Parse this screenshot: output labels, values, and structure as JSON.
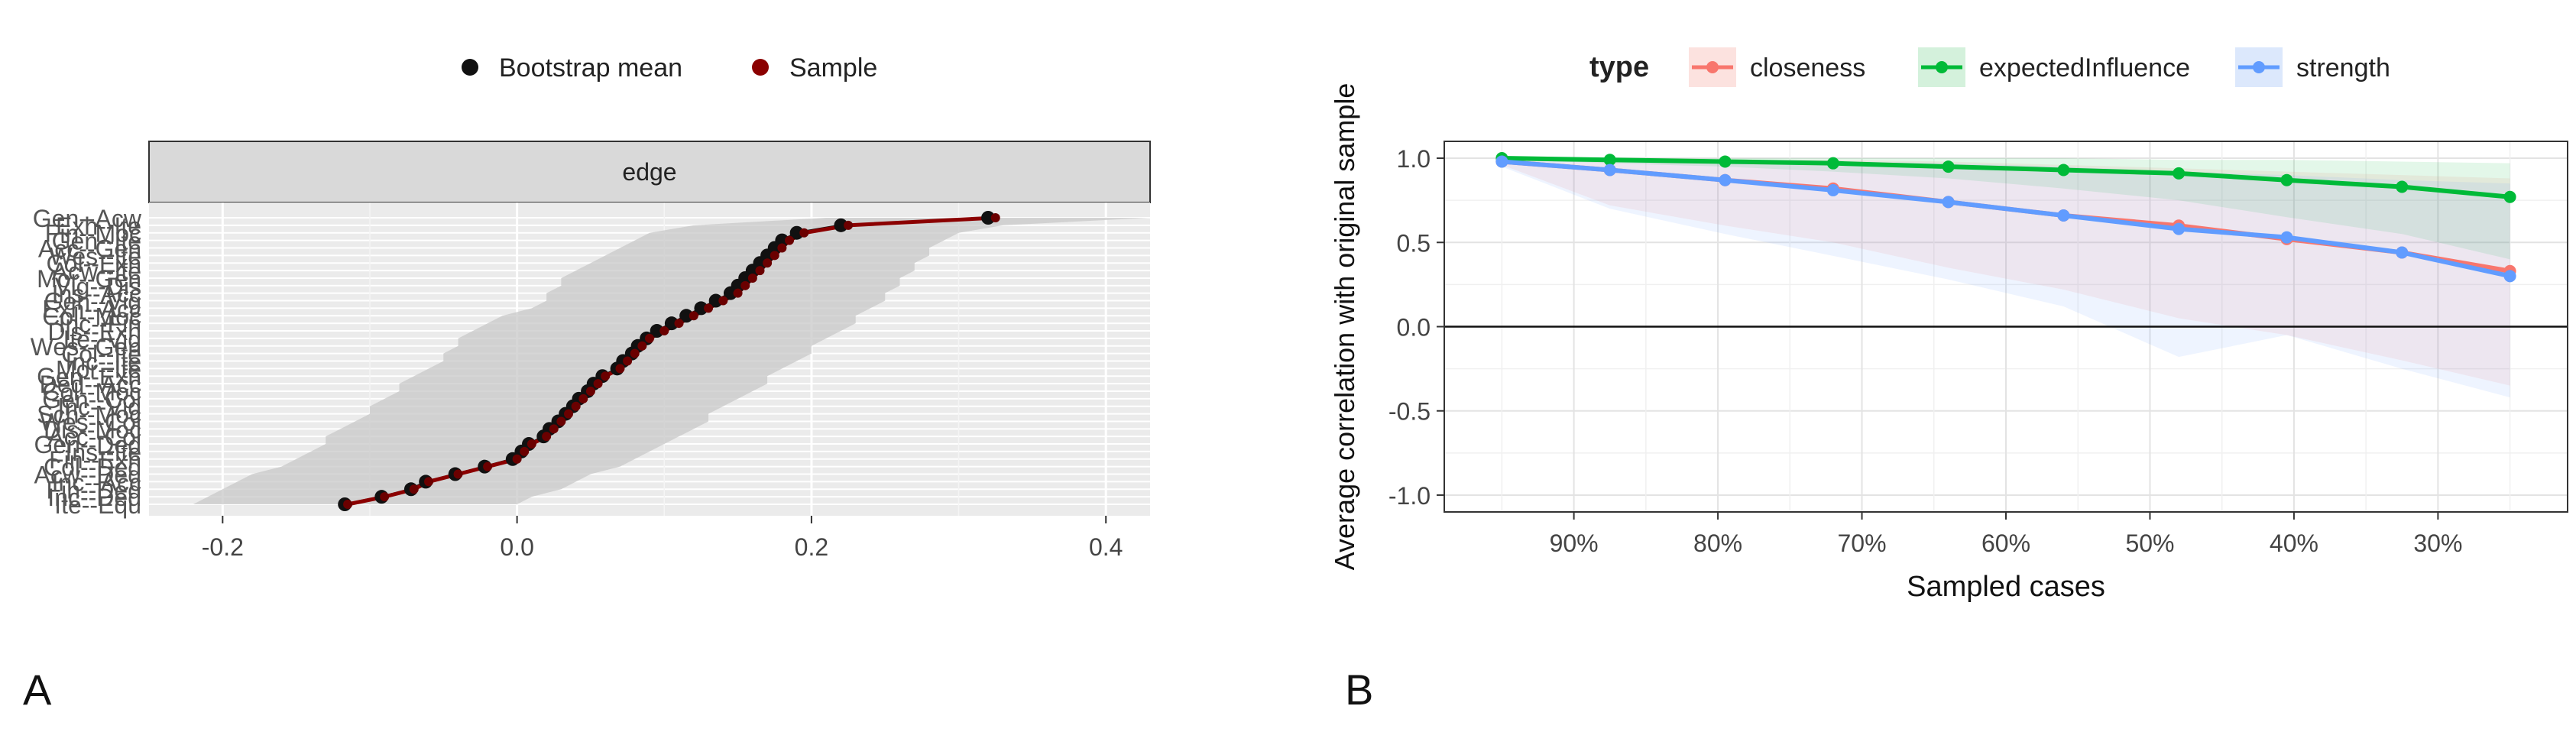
{
  "chart_data": [
    {
      "panel": "A",
      "type": "line",
      "strip_label": "edge",
      "legend": {
        "position": "top",
        "items": [
          {
            "label": "Bootstrap mean",
            "color": "#111111"
          },
          {
            "label": "Sample",
            "color": "#8B0000"
          }
        ]
      },
      "xlim": [
        -0.25,
        0.43
      ],
      "x_ticks": [
        "-0.2",
        "0.0",
        "0.2",
        "0.4"
      ],
      "x_tick_values": [
        -0.2,
        0.0,
        0.2,
        0.4
      ],
      "y_tick_labels": [
        "Gen--Acw",
        "Exh--Ite",
        "Fin--Moc",
        "Gen--Ite",
        "Acc--Gen",
        "Wes--Ite",
        "Col--Exh",
        "Acw--Ite",
        "Mor--Gen",
        "Vig--Dis",
        "Ins--Acc",
        "Gen--Vig",
        "Exh--Acc",
        "Col--Moc",
        "Inc--Fin",
        "Dis--Exh",
        "Ite--Vig",
        "Wes--Gen",
        "Col--Ite",
        "Inc--Ite",
        "Mor--Ite",
        "Gen--Exh",
        "Ded--Acc",
        "Col--Moc",
        "Gen--Col",
        "Inc--Vig",
        "Sch--Moc",
        "Wes--Col",
        "Dis--Moc",
        "Acc--Col",
        "Gen--Ded",
        "Ins--Ite",
        "Fin--Exh",
        "Col--Ded",
        "Acw--Ded",
        "Inc--Acc",
        "Fin--Ded",
        "Inc--Ded",
        "Ite--Equ"
      ],
      "sample": [
        0.325,
        0.225,
        0.195,
        0.185,
        0.18,
        0.175,
        0.17,
        0.165,
        0.16,
        0.155,
        0.15,
        0.14,
        0.13,
        0.12,
        0.11,
        0.1,
        0.09,
        0.085,
        0.08,
        0.075,
        0.07,
        0.06,
        0.055,
        0.05,
        0.045,
        0.04,
        0.035,
        0.03,
        0.025,
        0.02,
        0.01,
        0.005,
        0.0,
        -0.02,
        -0.04,
        -0.06,
        -0.07,
        -0.09,
        -0.115
      ],
      "bootstrap_mean": [
        0.32,
        0.22,
        0.19,
        0.18,
        0.175,
        0.17,
        0.165,
        0.16,
        0.155,
        0.15,
        0.145,
        0.135,
        0.125,
        0.115,
        0.105,
        0.095,
        0.088,
        0.082,
        0.078,
        0.072,
        0.068,
        0.058,
        0.052,
        0.048,
        0.042,
        0.038,
        0.033,
        0.028,
        0.022,
        0.018,
        0.008,
        0.003,
        -0.003,
        -0.022,
        -0.042,
        -0.062,
        -0.072,
        -0.092,
        -0.117
      ],
      "ci_lower": [
        0.21,
        0.12,
        0.09,
        0.08,
        0.07,
        0.06,
        0.05,
        0.04,
        0.03,
        0.03,
        0.02,
        0.02,
        0.01,
        -0.01,
        -0.02,
        -0.03,
        -0.04,
        -0.04,
        -0.05,
        -0.05,
        -0.06,
        -0.07,
        -0.08,
        -0.08,
        -0.09,
        -0.1,
        -0.1,
        -0.11,
        -0.12,
        -0.13,
        -0.13,
        -0.14,
        -0.15,
        -0.16,
        -0.18,
        -0.19,
        -0.2,
        -0.21,
        -0.22
      ],
      "ci_upper": [
        0.43,
        0.33,
        0.3,
        0.29,
        0.28,
        0.28,
        0.27,
        0.27,
        0.26,
        0.26,
        0.25,
        0.25,
        0.24,
        0.23,
        0.23,
        0.22,
        0.21,
        0.2,
        0.2,
        0.19,
        0.18,
        0.17,
        0.17,
        0.16,
        0.15,
        0.14,
        0.13,
        0.13,
        0.12,
        0.11,
        0.1,
        0.09,
        0.08,
        0.07,
        0.05,
        0.04,
        0.03,
        0.01,
        0.0
      ]
    },
    {
      "panel": "B",
      "type": "line",
      "legend": {
        "title": "type",
        "position": "top",
        "items": [
          {
            "label": "closeness",
            "color": "#F8766D"
          },
          {
            "label": "expectedInfluence",
            "color": "#00BA38"
          },
          {
            "label": "strength",
            "color": "#619CFF"
          }
        ]
      },
      "xlabel": "Sampled cases",
      "ylabel": "Average correlation with original sample",
      "ylim": [
        -1.1,
        1.1
      ],
      "y_ticks": [
        "1.0",
        "0.5",
        "0.0",
        "-0.5",
        "-1.0"
      ],
      "y_tick_values": [
        1.0,
        0.5,
        0.0,
        -0.5,
        -1.0
      ],
      "x_ticks": [
        "90%",
        "80%",
        "70%",
        "60%",
        "50%",
        "40%",
        "30%"
      ],
      "x_tick_values": [
        90,
        80,
        70,
        60,
        50,
        40,
        30
      ],
      "x": [
        95,
        87.5,
        79.5,
        72,
        64,
        56,
        48,
        40.5,
        32.5,
        25
      ],
      "xlim": [
        99,
        21
      ],
      "series": [
        {
          "name": "closeness",
          "values": [
            0.98,
            0.93,
            0.87,
            0.82,
            0.74,
            0.66,
            0.6,
            0.52,
            0.44,
            0.33
          ],
          "lower": [
            0.96,
            0.72,
            0.6,
            0.5,
            0.35,
            0.22,
            0.05,
            -0.05,
            -0.2,
            -0.35
          ],
          "upper": [
            1.0,
            1.0,
            0.99,
            0.99,
            0.98,
            0.96,
            0.94,
            0.92,
            0.9,
            0.88
          ]
        },
        {
          "name": "expectedInfluence",
          "values": [
            1.0,
            0.99,
            0.98,
            0.97,
            0.95,
            0.93,
            0.91,
            0.87,
            0.83,
            0.77
          ],
          "lower": [
            0.99,
            0.97,
            0.95,
            0.92,
            0.88,
            0.82,
            0.75,
            0.65,
            0.55,
            0.4
          ],
          "upper": [
            1.0,
            1.0,
            1.0,
            1.0,
            1.0,
            1.0,
            0.99,
            0.99,
            0.98,
            0.97
          ]
        },
        {
          "name": "strength",
          "values": [
            0.98,
            0.93,
            0.87,
            0.81,
            0.74,
            0.66,
            0.58,
            0.53,
            0.44,
            0.3
          ],
          "lower": [
            0.95,
            0.7,
            0.55,
            0.42,
            0.28,
            0.12,
            -0.18,
            -0.05,
            -0.25,
            -0.42
          ],
          "upper": [
            1.0,
            1.0,
            0.99,
            0.98,
            0.97,
            0.95,
            0.92,
            0.9,
            0.87,
            0.85
          ]
        }
      ]
    }
  ],
  "labels": {
    "panel_a": "A",
    "panel_b": "B"
  }
}
